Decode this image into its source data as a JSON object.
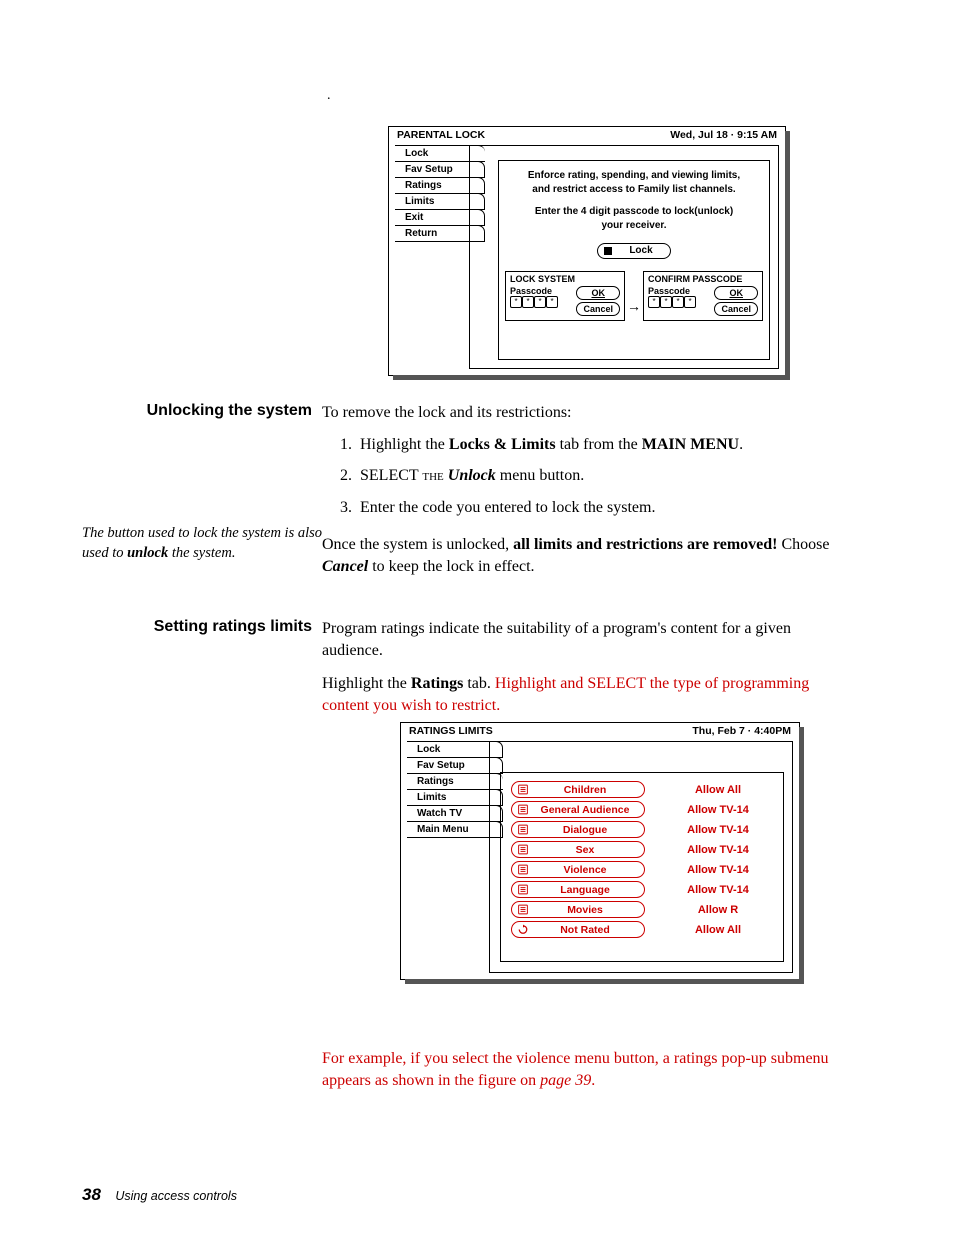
{
  "colors": {
    "red": "#cc0000",
    "black": "#000000",
    "bg": "#ffffff"
  },
  "dot": ".",
  "tv1": {
    "title": "PARENTAL LOCK",
    "datetime": "Wed, Jul 18  ·  9:15 AM",
    "tabs": [
      "Lock",
      "Fav Setup",
      "Ratings",
      "Limits",
      "Exit",
      "Return"
    ],
    "blurb1": "Enforce rating, spending, and viewing limits, and restrict access to Family list channels.",
    "blurb2": "Enter the 4 digit passcode to lock(unlock) your receiver.",
    "lock_btn": "Lock",
    "dlg1": {
      "title": "LOCK SYSTEM",
      "label": "Passcode",
      "ok": "OK",
      "cancel": "Cancel"
    },
    "dlg2": {
      "title": "CONFIRM PASSCODE",
      "label": "Passcode",
      "ok": "OK",
      "cancel": "Cancel"
    }
  },
  "sec1": {
    "heading": "Unlocking the system",
    "intro": "To remove the lock and its restrictions:",
    "item1_pre": "Highlight the ",
    "item1_b1": "Locks & Limits",
    "item1_mid": " tab from the ",
    "item1_b2": "MAIN MENU",
    "item1_post": ".",
    "item2_pre": "SELECT the ",
    "item2_i": "Unlock",
    "item2_post": " menu button.",
    "item3": "Enter the code you entered to lock the system.",
    "p2_pre": "Once the system is unlocked, ",
    "p2_b": "all limits and restrictions are removed!",
    "p2_post1": " Choose ",
    "p2_i": "Cancel",
    "p2_post2": " to keep the lock in effect.",
    "side_pre": "The button used to lock the system is also used to ",
    "side_b": "unlock",
    "side_post": " the system."
  },
  "sec2": {
    "heading": "Setting ratings limits",
    "p1": "Program ratings indicate the suitability of a program's content for a given audience.",
    "p2_pre": "Highlight the ",
    "p2_b": "Ratings",
    "p2_mid": " tab. ",
    "p2_red": "Highlight and SELECT the type of programming content you wish to restrict."
  },
  "tv2": {
    "title": "RATINGS LIMITS",
    "datetime": "Thu, Feb 7  ·  4:40PM",
    "tabs": [
      "Lock",
      "Fav Setup",
      "Ratings",
      "Limits",
      "Watch TV",
      "Main Menu"
    ],
    "rows": [
      {
        "label": "Children",
        "allow": "Allow All",
        "icon": "list"
      },
      {
        "label": "General Audience",
        "allow": "Allow TV-14",
        "icon": "list"
      },
      {
        "label": "Dialogue",
        "allow": "Allow TV-14",
        "icon": "list"
      },
      {
        "label": "Sex",
        "allow": "Allow TV-14",
        "icon": "list"
      },
      {
        "label": "Violence",
        "allow": "Allow TV-14",
        "icon": "list"
      },
      {
        "label": "Language",
        "allow": "Allow TV-14",
        "icon": "list"
      },
      {
        "label": "Movies",
        "allow": "Allow R",
        "icon": "list"
      },
      {
        "label": "Not Rated",
        "allow": "Allow All",
        "icon": "cycle"
      }
    ]
  },
  "sec3": {
    "p_pre": "For example, if you select the violence menu button, a ratings pop-up submenu appears as shown in the figure on ",
    "p_link": "page 39",
    "p_post": "."
  },
  "footer": {
    "page": "38",
    "chapter": "Using access controls"
  }
}
